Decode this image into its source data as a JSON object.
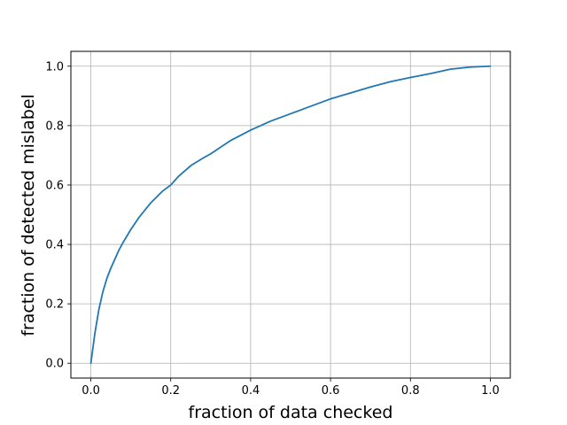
{
  "chart_data": {
    "type": "line",
    "title": "",
    "xlabel": "fraction of data checked",
    "ylabel": "fraction of detected mislabel",
    "xlim": [
      -0.05,
      1.05
    ],
    "ylim": [
      -0.05,
      1.05
    ],
    "x_ticks": [
      0.0,
      0.2,
      0.4,
      0.6,
      0.8,
      1.0
    ],
    "x_tick_labels": [
      "0.0",
      "0.2",
      "0.4",
      "0.6",
      "0.8",
      "1.0"
    ],
    "y_ticks": [
      0.0,
      0.2,
      0.4,
      0.6,
      0.8,
      1.0
    ],
    "y_tick_labels": [
      "0.0",
      "0.2",
      "0.4",
      "0.6",
      "0.8",
      "1.0"
    ],
    "grid": true,
    "legend": "none",
    "series": [
      {
        "color": "#1f77b4",
        "x": [
          0.0,
          0.005,
          0.01,
          0.02,
          0.03,
          0.04,
          0.05,
          0.06,
          0.07,
          0.08,
          0.1,
          0.12,
          0.15,
          0.18,
          0.2,
          0.22,
          0.25,
          0.28,
          0.3,
          0.35,
          0.4,
          0.45,
          0.5,
          0.55,
          0.6,
          0.65,
          0.7,
          0.75,
          0.8,
          0.85,
          0.9,
          0.95,
          1.0
        ],
        "y": [
          0.0,
          0.05,
          0.1,
          0.18,
          0.24,
          0.285,
          0.32,
          0.35,
          0.38,
          0.405,
          0.45,
          0.49,
          0.54,
          0.58,
          0.6,
          0.63,
          0.665,
          0.69,
          0.705,
          0.75,
          0.785,
          0.815,
          0.84,
          0.865,
          0.89,
          0.91,
          0.93,
          0.948,
          0.962,
          0.975,
          0.99,
          0.997,
          1.0
        ]
      }
    ]
  }
}
